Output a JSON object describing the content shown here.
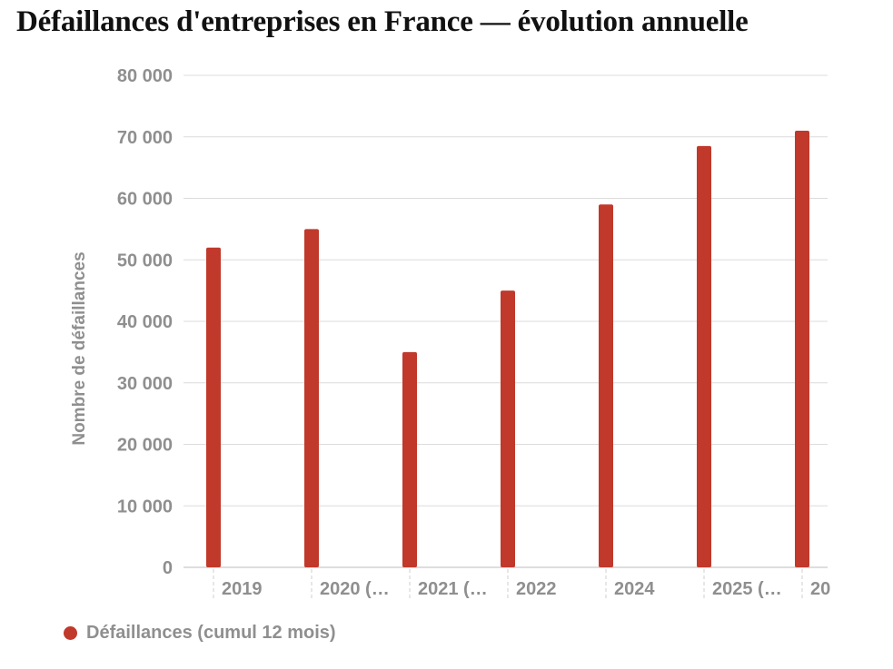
{
  "chart_data": {
    "type": "bar",
    "title": "Défaillances d'entreprises en France — évolution annuelle",
    "ylabel": "Nombre de défaillances",
    "xlabel": "",
    "ylim": [
      0,
      80000
    ],
    "yticks": [
      0,
      10000,
      20000,
      30000,
      40000,
      50000,
      60000,
      70000,
      80000
    ],
    "ytick_labels": [
      "0",
      "10 000",
      "20 000",
      "30 000",
      "40 000",
      "50 000",
      "60 000",
      "70 000",
      "80 000"
    ],
    "categories": [
      "2019",
      "2020 (…",
      "2021 (…",
      "2022",
      "2024",
      "2025 (…",
      "20"
    ],
    "series": [
      {
        "name": "Défaillances (cumul 12 mois)",
        "color": "#c0392b",
        "values": [
          52000,
          55000,
          35000,
          45000,
          59000,
          68500,
          71000
        ]
      }
    ],
    "grid": true,
    "legend_position": "bottom-left"
  }
}
